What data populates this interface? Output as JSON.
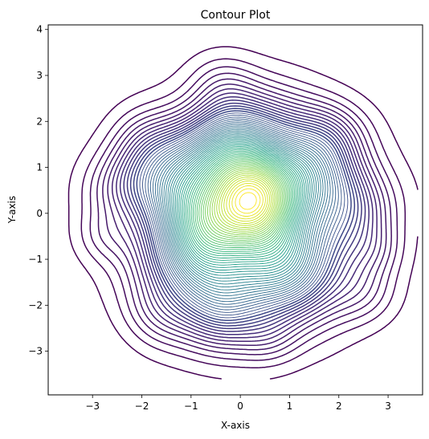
{
  "chart_data": {
    "type": "contour",
    "title": "Contour Plot",
    "xlabel": "X-axis",
    "ylabel": "Y-axis",
    "xlim": [
      -3.9,
      3.7
    ],
    "ylim": [
      -3.95,
      4.1
    ],
    "xticks": [
      -3,
      -2,
      -1,
      0,
      1,
      2,
      3
    ],
    "yticks": [
      -3,
      -2,
      -1,
      0,
      1,
      2,
      3,
      4
    ],
    "colormap": "viridis",
    "grid": false,
    "density": {
      "distribution": "2D kernel density estimate, approximately standard normal",
      "peak_location": [
        -0.05,
        0.2
      ],
      "outer_extent_x": [
        -3.2,
        3.0
      ],
      "outer_extent_y": [
        -3.05,
        3.3
      ]
    },
    "num_levels": 60
  },
  "colors": {
    "low": "#440154",
    "high": "#fde725"
  }
}
